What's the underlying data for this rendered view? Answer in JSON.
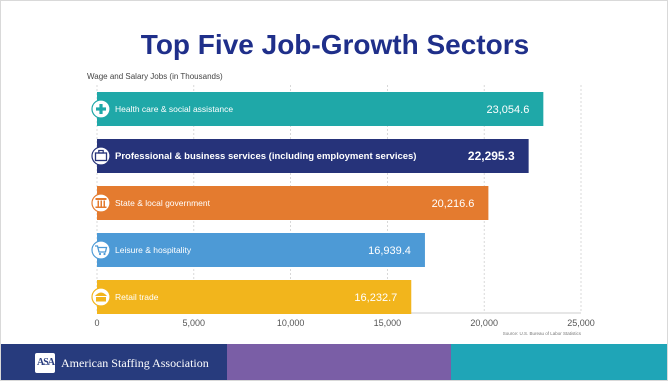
{
  "title": "Top Five Job-Growth Sectors",
  "footer": {
    "logo_text": "ASA",
    "org_name": "American Staffing Association"
  },
  "colors": {
    "title": "#1f2f8a",
    "grid": "#cfcfcf"
  },
  "chart_data": {
    "type": "bar",
    "orientation": "horizontal",
    "ylabel": "Wage and Salary Jobs (in Thousands)",
    "xlim": [
      0,
      25000
    ],
    "xticks": [
      0,
      5000,
      10000,
      15000,
      20000,
      25000
    ],
    "xtick_labels": [
      "0",
      "5,000",
      "10,000",
      "15,000",
      "20,000",
      "25,000"
    ],
    "grid": true,
    "source": "Source: U.S. Bureau of Labor Statistics",
    "categories": [
      "Health care & social assistance",
      "Professional & business services (including employment services)",
      "State & local government",
      "Leisure & hospitality",
      "Retail trade"
    ],
    "values": [
      23054.6,
      22295.3,
      20216.6,
      16939.4,
      16232.7
    ],
    "value_labels": [
      "23,054.6",
      "22,295.3",
      "20,216.6",
      "16,939.4",
      "16,232.7"
    ],
    "bar_colors": [
      "#1fa8a8",
      "#26337a",
      "#e47b2f",
      "#4d9ad6",
      "#f2b51c"
    ],
    "icons": [
      "plus-icon",
      "briefcase-icon",
      "column-building-icon",
      "shopping-cart-icon",
      "storefront-icon"
    ]
  }
}
